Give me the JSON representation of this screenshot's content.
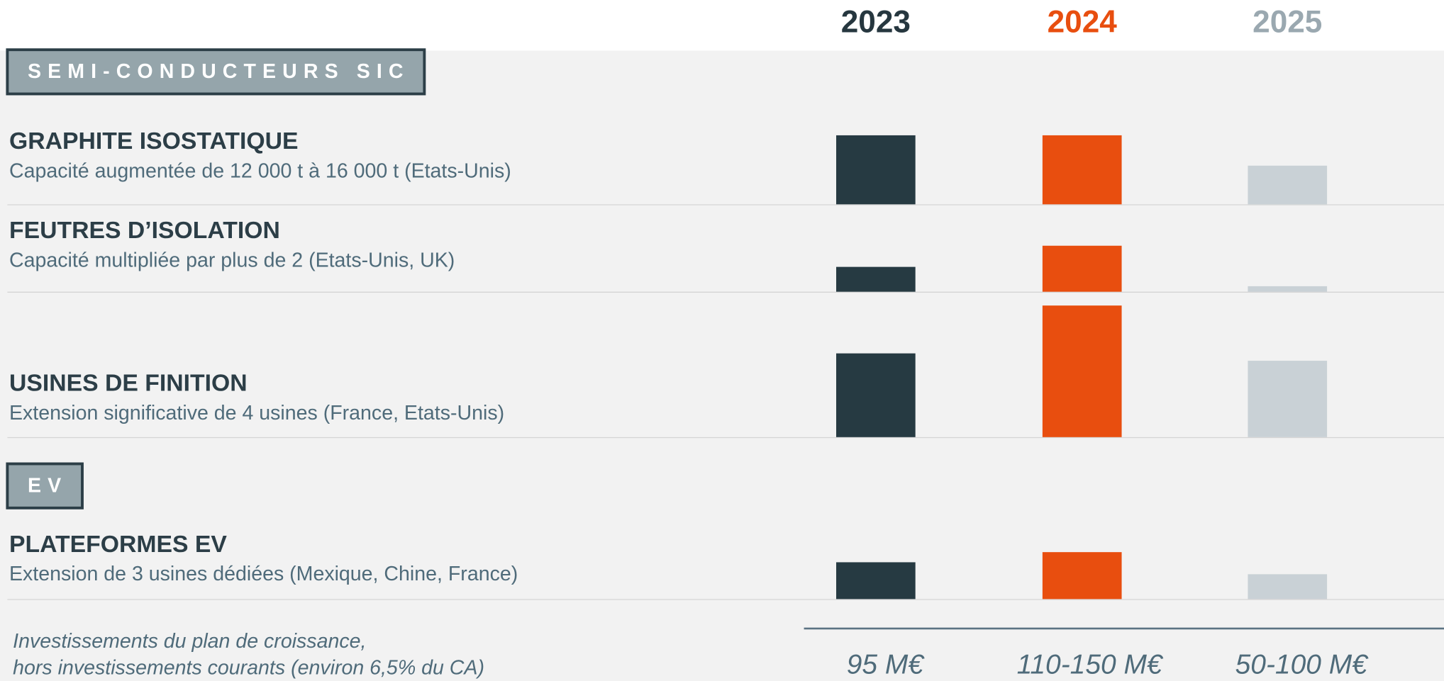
{
  "years": [
    {
      "label": "2023",
      "color": "#263a42"
    },
    {
      "label": "2024",
      "color": "#e84e0f"
    },
    {
      "label": "2025",
      "color": "#c9d1d6"
    }
  ],
  "year_label_colors": [
    "#26373f",
    "#e84e0f",
    "#9aa8b0"
  ],
  "sections": [
    {
      "label": "SEMI-CONDUCTEURS SIC",
      "rows": [
        {
          "title": "GRAPHITE ISOSTATIQUE",
          "subtitle": "Capacité augmentée de 12 000 t à 16 000 t (Etats-Unis)",
          "values": [
            75,
            75,
            42
          ]
        },
        {
          "title": "FEUTRES D’ISOLATION",
          "subtitle": "Capacité multipliée par plus de 2 (Etats-Unis, UK)",
          "values": [
            27,
            50,
            6
          ]
        },
        {
          "title": "USINES DE FINITION",
          "subtitle": "Extension significative de 4 usines (France, Etats-Unis)",
          "values": [
            91,
            143,
            83
          ]
        }
      ]
    },
    {
      "label": "EV",
      "rows": [
        {
          "title": "PLATEFORMES EV",
          "subtitle": "Extension de 3 usines dédiées (Mexique, Chine, France)",
          "values": [
            40,
            51,
            27
          ]
        }
      ]
    }
  ],
  "footer": {
    "note": [
      "Investissements du plan de croissance,",
      "hors investissements courants (environ 6,5% du CA)"
    ],
    "totals": [
      "95 M€",
      "110-150 M€",
      "50-100 M€"
    ]
  }
}
